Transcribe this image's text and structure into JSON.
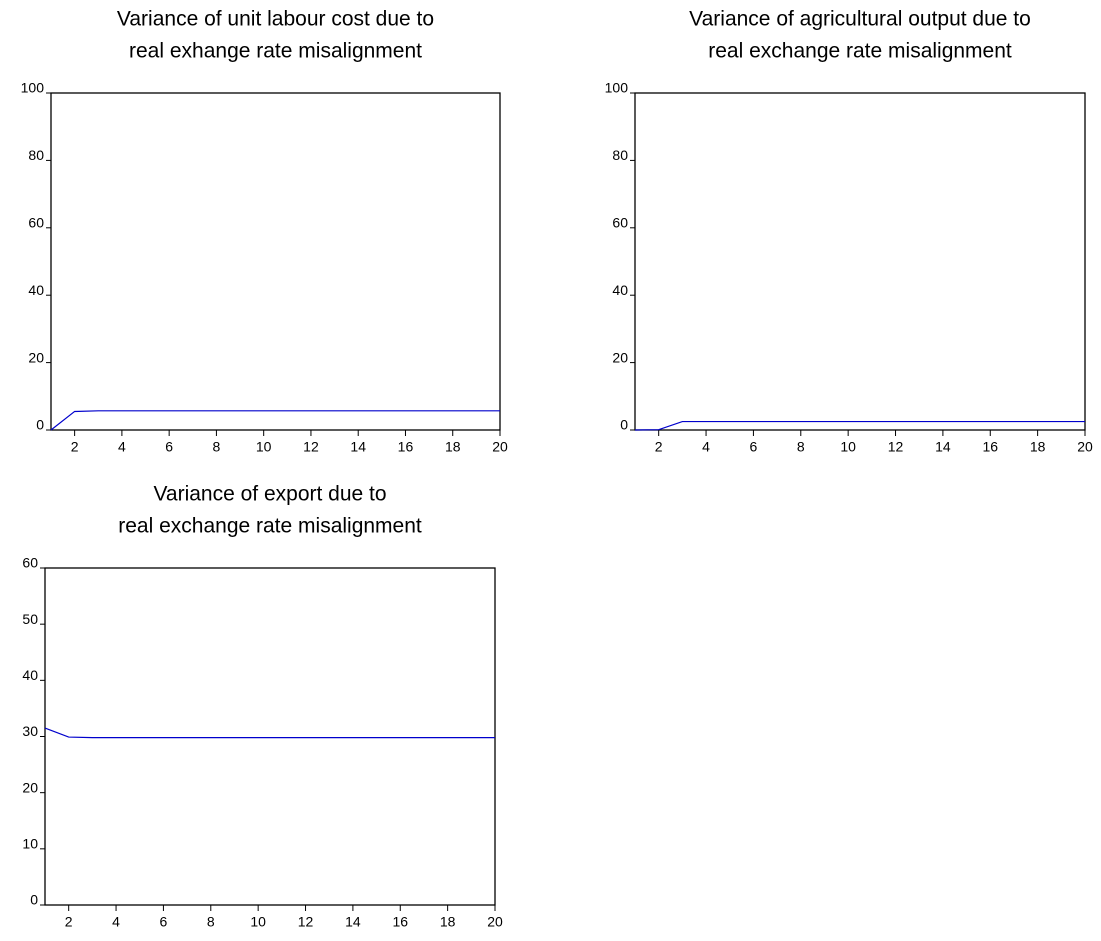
{
  "chart_data": [
    {
      "type": "line",
      "title": [
        "Variance of unit labour cost due to",
        "real exhange rate misalignment"
      ],
      "x": [
        1,
        2,
        3,
        4,
        5,
        6,
        7,
        8,
        9,
        10,
        11,
        12,
        13,
        14,
        15,
        16,
        17,
        18,
        19,
        20
      ],
      "series": [
        {
          "color": "#0000cc",
          "values": [
            0,
            5.5,
            5.7,
            5.7,
            5.7,
            5.7,
            5.7,
            5.7,
            5.7,
            5.7,
            5.7,
            5.7,
            5.7,
            5.7,
            5.7,
            5.7,
            5.7,
            5.7,
            5.7,
            5.7
          ]
        }
      ],
      "xlim": [
        1,
        20
      ],
      "xticks": [
        2,
        4,
        6,
        8,
        10,
        12,
        14,
        16,
        18,
        20
      ],
      "ylim": [
        0,
        100
      ],
      "yticks": [
        0,
        20,
        40,
        60,
        80,
        100
      ]
    },
    {
      "type": "line",
      "title": [
        "Variance of agricultural output due to",
        "real exchange rate  misalignment"
      ],
      "x": [
        1,
        2,
        3,
        4,
        5,
        6,
        7,
        8,
        9,
        10,
        11,
        12,
        13,
        14,
        15,
        16,
        17,
        18,
        19,
        20
      ],
      "series": [
        {
          "color": "#0000cc",
          "values": [
            0,
            0.1,
            2.5,
            2.5,
            2.5,
            2.5,
            2.5,
            2.5,
            2.5,
            2.5,
            2.5,
            2.5,
            2.5,
            2.5,
            2.5,
            2.5,
            2.5,
            2.5,
            2.5,
            2.5
          ]
        }
      ],
      "xlim": [
        1,
        20
      ],
      "xticks": [
        2,
        4,
        6,
        8,
        10,
        12,
        14,
        16,
        18,
        20
      ],
      "ylim": [
        0,
        100
      ],
      "yticks": [
        0,
        20,
        40,
        60,
        80,
        100
      ]
    },
    {
      "type": "line",
      "title": [
        "Variance of export due to",
        "real exchange rate misalignment"
      ],
      "x": [
        1,
        2,
        3,
        4,
        5,
        6,
        7,
        8,
        9,
        10,
        11,
        12,
        13,
        14,
        15,
        16,
        17,
        18,
        19,
        20
      ],
      "series": [
        {
          "color": "#0000cc",
          "values": [
            31.5,
            29.9,
            29.8,
            29.8,
            29.8,
            29.8,
            29.8,
            29.8,
            29.8,
            29.8,
            29.8,
            29.8,
            29.8,
            29.8,
            29.8,
            29.8,
            29.8,
            29.8,
            29.8,
            29.8
          ]
        }
      ],
      "xlim": [
        1,
        20
      ],
      "xticks": [
        2,
        4,
        6,
        8,
        10,
        12,
        14,
        16,
        18,
        20
      ],
      "ylim": [
        0,
        60
      ],
      "yticks": [
        0,
        10,
        20,
        30,
        40,
        50,
        60
      ]
    }
  ]
}
